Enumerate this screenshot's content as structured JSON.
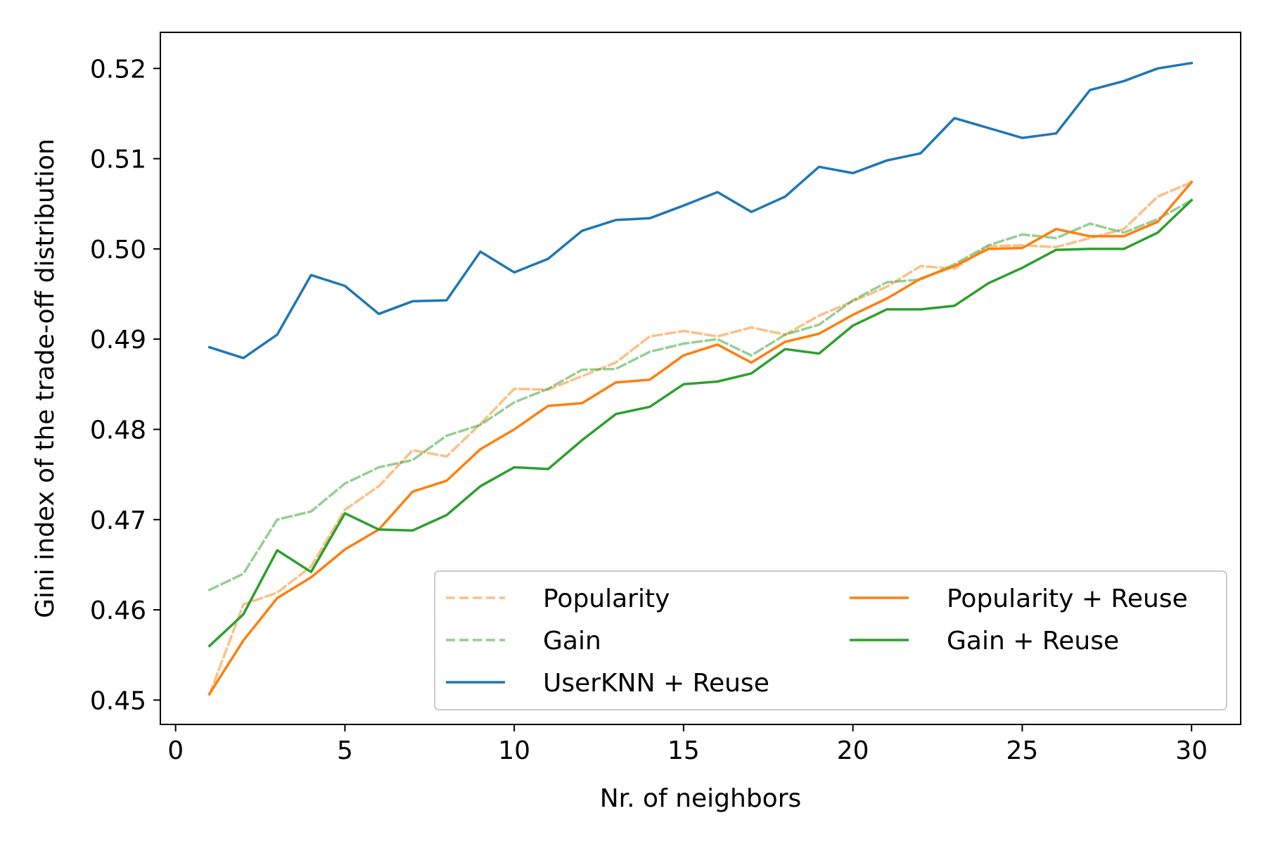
{
  "chart_data": {
    "type": "line",
    "xlabel": "Nr. of neighbors",
    "ylabel": "Gini index of the trade-off distribution",
    "xlim": [
      -0.45,
      31.45
    ],
    "ylim": [
      0.4473,
      0.524
    ],
    "xticks": [
      0,
      5,
      10,
      15,
      20,
      25,
      30
    ],
    "xtick_labels": [
      "0",
      "5",
      "10",
      "15",
      "20",
      "25",
      "30"
    ],
    "yticks": [
      0.45,
      0.46,
      0.47,
      0.48,
      0.49,
      0.5,
      0.51,
      0.52
    ],
    "ytick_labels": [
      "0.45",
      "0.46",
      "0.47",
      "0.48",
      "0.49",
      "0.50",
      "0.51",
      "0.52"
    ],
    "grid": false,
    "legend": {
      "placement": "lower right",
      "columns": 2
    },
    "x": [
      1,
      2,
      3,
      4,
      5,
      6,
      7,
      8,
      9,
      10,
      11,
      12,
      13,
      14,
      15,
      16,
      17,
      18,
      19,
      20,
      21,
      22,
      23,
      24,
      25,
      26,
      27,
      28,
      29,
      30
    ],
    "series": [
      {
        "name": "Popularity",
        "color": "#ff7f0e",
        "style": "dashed",
        "opacity": 0.5,
        "values": [
          0.4506,
          0.4606,
          0.4619,
          0.4648,
          0.4711,
          0.4737,
          0.4777,
          0.477,
          0.4806,
          0.4845,
          0.4844,
          0.4859,
          0.4874,
          0.4903,
          0.4909,
          0.4903,
          0.4913,
          0.4905,
          0.4926,
          0.4942,
          0.4958,
          0.4981,
          0.4978,
          0.5003,
          0.5004,
          0.5002,
          0.5012,
          0.5022,
          0.5058,
          0.5074
        ]
      },
      {
        "name": "Gain",
        "color": "#2ca02c",
        "style": "dashed",
        "opacity": 0.5,
        "values": [
          0.4622,
          0.464,
          0.47,
          0.4709,
          0.474,
          0.4758,
          0.4766,
          0.4793,
          0.4805,
          0.483,
          0.4845,
          0.4866,
          0.4867,
          0.4886,
          0.4895,
          0.49,
          0.4882,
          0.4905,
          0.4916,
          0.4943,
          0.4963,
          0.4966,
          0.4983,
          0.5004,
          0.5016,
          0.5012,
          0.5028,
          0.5018,
          0.5033,
          0.5054
        ]
      },
      {
        "name": "UserKNN + Reuse",
        "color": "#1f77b4",
        "style": "solid",
        "opacity": 1,
        "values": [
          0.4891,
          0.4879,
          0.4905,
          0.4971,
          0.4959,
          0.4928,
          0.4942,
          0.4943,
          0.4997,
          0.4974,
          0.4989,
          0.502,
          0.5032,
          0.5034,
          0.5048,
          0.5063,
          0.5041,
          0.5058,
          0.5091,
          0.5084,
          0.5098,
          0.5106,
          0.5145,
          0.5134,
          0.5123,
          0.5128,
          0.5176,
          0.5186,
          0.52,
          0.5206
        ]
      },
      {
        "name": "Popularity + Reuse",
        "color": "#ff7f0e",
        "style": "solid",
        "opacity": 1,
        "values": [
          0.4507,
          0.4566,
          0.4613,
          0.4636,
          0.4667,
          0.4689,
          0.4731,
          0.4743,
          0.4778,
          0.48,
          0.4826,
          0.4829,
          0.4852,
          0.4855,
          0.4882,
          0.4894,
          0.4874,
          0.4897,
          0.4906,
          0.4927,
          0.4945,
          0.4967,
          0.4981,
          0.5,
          0.5001,
          0.5022,
          0.5014,
          0.5014,
          0.503,
          0.5074
        ]
      },
      {
        "name": "Gain + Reuse",
        "color": "#2ca02c",
        "style": "solid",
        "opacity": 1,
        "values": [
          0.456,
          0.4595,
          0.4666,
          0.4642,
          0.4707,
          0.4689,
          0.4688,
          0.4705,
          0.4737,
          0.4758,
          0.4756,
          0.4788,
          0.4817,
          0.4825,
          0.485,
          0.4853,
          0.4862,
          0.4889,
          0.4884,
          0.4915,
          0.4933,
          0.4933,
          0.4937,
          0.4962,
          0.4979,
          0.4999,
          0.5,
          0.5,
          0.5018,
          0.5054
        ]
      }
    ]
  }
}
